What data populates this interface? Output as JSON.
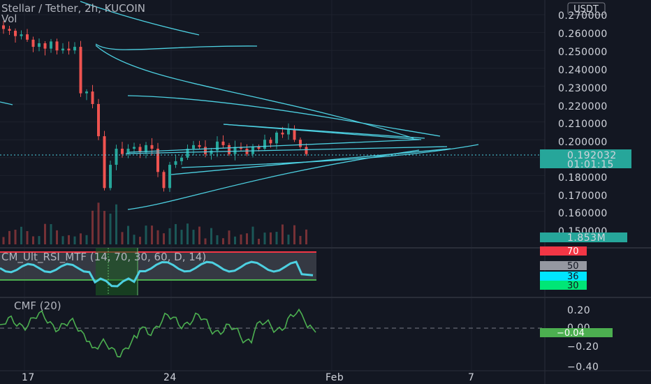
{
  "header": {
    "title": "Stellar / Tether, 2h, KUCOIN",
    "vol_label": "Vol",
    "currency_button": "USDT"
  },
  "price_axis": {
    "ticks": [
      "0.270000",
      "0.260000",
      "0.250000",
      "0.240000",
      "0.230000",
      "0.220000",
      "0.210000",
      "0.200000",
      "0.180000",
      "0.170000",
      "0.160000",
      "0.150000"
    ],
    "last_price": "0.192032",
    "countdown": "01:01:15",
    "volume": "1.853M"
  },
  "rsi_pane": {
    "title": "CM_Ult_RSI_MTF (14, 70, 30, 60, D, 14)",
    "badges": [
      "70",
      "50",
      "36",
      "30"
    ]
  },
  "cmf_pane": {
    "title": "CMF (20)",
    "ticks": [
      "0.20",
      "0.00",
      "−0.20",
      "−0.40"
    ],
    "last_value": "−0.04"
  },
  "time_axis": {
    "labels": [
      "17",
      "24",
      "Feb",
      "7"
    ]
  },
  "colors": {
    "background": "#131722",
    "up": "#26a69a",
    "down": "#ef5350",
    "trendline": "#4dd0e1",
    "cmf": "#4caf50",
    "rsi_line": "#4dd0e1"
  },
  "chart_data": {
    "type": "candlestick",
    "title": "Stellar / Tether, 2h, KUCOIN",
    "ylim": [
      0.145,
      0.275
    ],
    "x_ticks": [
      "17",
      "24",
      "Feb",
      "7"
    ],
    "approx_close": [
      0.262,
      0.261,
      0.258,
      0.259,
      0.256,
      0.252,
      0.254,
      0.251,
      0.255,
      0.25,
      0.251,
      0.25,
      0.252,
      0.226,
      0.227,
      0.22,
      0.202,
      0.173,
      0.186,
      0.195,
      0.192,
      0.195,
      0.196,
      0.193,
      0.197,
      0.195,
      0.182,
      0.173,
      0.186,
      0.188,
      0.19,
      0.195,
      0.197,
      0.196,
      0.192,
      0.194,
      0.199,
      0.197,
      0.192,
      0.196,
      0.195,
      0.192,
      0.196,
      0.195,
      0.2,
      0.198,
      0.204,
      0.203,
      0.206,
      0.2,
      0.196,
      0.192
    ],
    "last_price": 0.192032,
    "volume_last": "1.853M",
    "rsi": {
      "upper": 70,
      "mid": 50,
      "lower": 30,
      "last": 36
    },
    "cmf": {
      "last": -0.04,
      "ylim": [
        -0.4,
        0.3
      ]
    }
  }
}
